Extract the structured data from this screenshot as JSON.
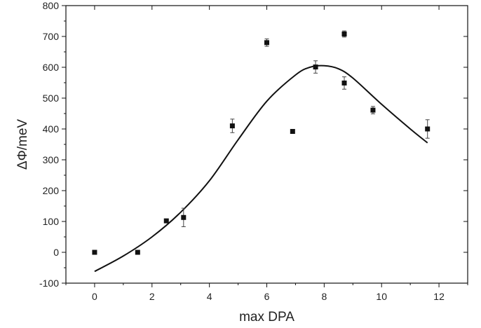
{
  "chart_data": {
    "type": "scatter",
    "xlabel": "max DPA",
    "ylabel": "ΔΦ/meV",
    "xlim": [
      -1,
      13
    ],
    "ylim": [
      -100,
      800
    ],
    "x_ticks": [
      0,
      2,
      4,
      6,
      8,
      10,
      12
    ],
    "x_tick_labels": [
      "0",
      "2",
      "4",
      "6",
      "8",
      "10",
      "12"
    ],
    "y_ticks": [
      -100,
      0,
      100,
      200,
      300,
      400,
      500,
      600,
      700,
      800
    ],
    "y_tick_labels": [
      "-100",
      "0",
      "100",
      "200",
      "300",
      "400",
      "500",
      "600",
      "700",
      "800"
    ],
    "grid": false,
    "legend": false,
    "series": [
      {
        "kind": "points",
        "marker": "square",
        "color": "#111111",
        "points": [
          {
            "x": 0.0,
            "y": 0,
            "err": 6
          },
          {
            "x": 1.5,
            "y": 0,
            "err": 6
          },
          {
            "x": 2.5,
            "y": 102,
            "err": 5
          },
          {
            "x": 3.1,
            "y": 113,
            "err": 30
          },
          {
            "x": 4.8,
            "y": 410,
            "err": 22
          },
          {
            "x": 6.0,
            "y": 680,
            "err": 12
          },
          {
            "x": 6.9,
            "y": 392,
            "err": 5
          },
          {
            "x": 7.7,
            "y": 601,
            "err": 20
          },
          {
            "x": 8.7,
            "y": 708,
            "err": 10
          },
          {
            "x": 8.7,
            "y": 549,
            "err": 20
          },
          {
            "x": 9.7,
            "y": 461,
            "err": 12
          },
          {
            "x": 11.6,
            "y": 400,
            "err": 30
          }
        ]
      },
      {
        "kind": "fit-line",
        "color": "#111111",
        "x": [
          0,
          1,
          2,
          3,
          4,
          5,
          6,
          7,
          7.5,
          8,
          8.5,
          9,
          10,
          11,
          11.6
        ],
        "y": [
          -62,
          -12,
          50,
          130,
          232,
          365,
          490,
          575,
          600,
          605,
          595,
          565,
          480,
          400,
          355
        ]
      }
    ]
  }
}
